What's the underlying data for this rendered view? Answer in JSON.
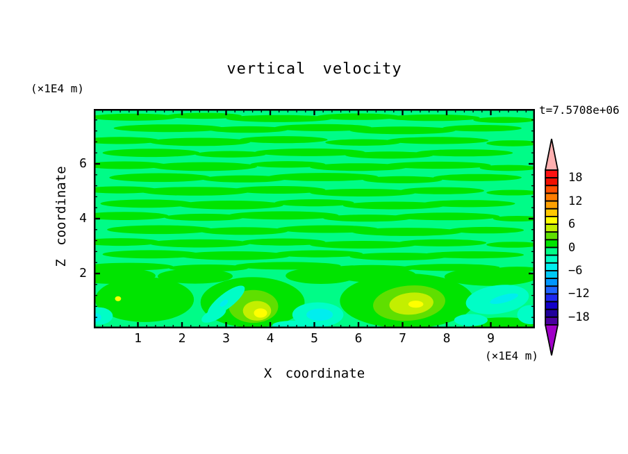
{
  "header": {
    "title": "vertical velocity",
    "time_label": "t=7.5708e+06"
  },
  "axes": {
    "x": {
      "label": "X coordinate",
      "unit": "(×1E4 m)",
      "range": [
        0,
        10
      ],
      "major_ticks": [
        1,
        2,
        3,
        4,
        5,
        6,
        7,
        8,
        9
      ],
      "minor_step": 0.2
    },
    "z": {
      "label": "Z coordinate",
      "unit": "(×1E4 m)",
      "range": [
        0,
        8
      ],
      "major_ticks": [
        2,
        4,
        6
      ],
      "minor_step": 0.4
    }
  },
  "colorbar": {
    "min": -20,
    "max": 20,
    "cell_step": 2,
    "labels": [
      18,
      12,
      6,
      0,
      -6,
      -12,
      -18
    ],
    "cells_top_to_bottom": [
      "l18",
      "l16",
      "l14",
      "l12",
      "l10",
      "l8",
      "l6",
      "l4",
      "l2",
      "l0",
      "m2",
      "m4",
      "m6",
      "m8",
      "m10",
      "m12",
      "m14",
      "m16",
      "m18",
      "m20"
    ],
    "over_color_key": "over",
    "under_color_key": "under"
  },
  "chart_data": {
    "type": "filled_contour",
    "title": "vertical velocity",
    "xlabel": "X coordinate",
    "ylabel": "Z coordinate",
    "x_unit": "(×1E4 m)",
    "z_unit": "(×1E4 m)",
    "time_annotation": "t=7.5708e+06",
    "x_range": [
      0,
      10
    ],
    "z_range": [
      0,
      8
    ],
    "value_range": [
      -20,
      20
    ],
    "contour_interval": 2,
    "background_level": "-2..0",
    "palette": {
      "l18": "#ff1212",
      "l16": "#f00f00",
      "l14": "#ff5000",
      "l12": "#ff7d00",
      "l10": "#ffa000",
      "l8": "#ffc800",
      "l6": "#ffff00",
      "l4": "#c3ef00",
      "l2": "#5fdf00",
      "l0": "#00e400",
      "m2": "#00fc87",
      "m4": "#00fec6",
      "m6": "#00eeee",
      "m8": "#00c8f5",
      "m10": "#0096ff",
      "m12": "#1e64ff",
      "m14": "#1e28f0",
      "m16": "#1400c8",
      "m18": "#20009b",
      "m20": "#4b00a0",
      "over": "#ffb0b0",
      "under": "#a000c8"
    },
    "streaks_level": "l0",
    "streaks": [
      [
        0.9,
        7.7,
        1.0,
        0.13
      ],
      [
        2.5,
        7.75,
        0.85,
        0.11
      ],
      [
        4.2,
        7.65,
        1.2,
        0.13
      ],
      [
        6.0,
        7.72,
        0.95,
        0.12
      ],
      [
        7.7,
        7.68,
        1.05,
        0.12
      ],
      [
        9.3,
        7.6,
        0.7,
        0.11
      ],
      [
        1.7,
        7.3,
        1.25,
        0.14
      ],
      [
        3.5,
        7.25,
        0.9,
        0.12
      ],
      [
        5.2,
        7.32,
        1.1,
        0.13
      ],
      [
        7.0,
        7.22,
        1.2,
        0.14
      ],
      [
        8.8,
        7.3,
        0.9,
        0.12
      ],
      [
        0.6,
        6.85,
        0.9,
        0.13
      ],
      [
        2.4,
        6.8,
        1.15,
        0.15
      ],
      [
        4.3,
        6.88,
        1.0,
        0.13
      ],
      [
        6.1,
        6.78,
        0.85,
        0.12
      ],
      [
        7.8,
        6.85,
        1.15,
        0.13
      ],
      [
        9.5,
        6.75,
        0.6,
        0.11
      ],
      [
        1.3,
        6.4,
        1.1,
        0.15
      ],
      [
        3.1,
        6.35,
        0.8,
        0.12
      ],
      [
        4.9,
        6.42,
        1.25,
        0.14
      ],
      [
        6.7,
        6.32,
        1.0,
        0.13
      ],
      [
        8.4,
        6.4,
        1.1,
        0.13
      ],
      [
        0.7,
        5.95,
        0.95,
        0.14
      ],
      [
        2.5,
        5.9,
        1.2,
        0.16
      ],
      [
        4.4,
        5.98,
        0.85,
        0.12
      ],
      [
        6.0,
        5.88,
        1.1,
        0.14
      ],
      [
        7.8,
        5.95,
        1.2,
        0.13
      ],
      [
        9.4,
        5.85,
        0.65,
        0.11
      ],
      [
        1.5,
        5.5,
        1.15,
        0.16
      ],
      [
        3.4,
        5.45,
        0.95,
        0.13
      ],
      [
        5.2,
        5.52,
        1.25,
        0.15
      ],
      [
        7.0,
        5.42,
        0.9,
        0.13
      ],
      [
        8.7,
        5.5,
        1.0,
        0.13
      ],
      [
        0.6,
        5.05,
        0.85,
        0.13
      ],
      [
        2.3,
        5.0,
        1.25,
        0.16
      ],
      [
        4.2,
        5.05,
        1.05,
        0.14
      ],
      [
        6.1,
        4.95,
        1.2,
        0.14
      ],
      [
        7.9,
        5.02,
        0.95,
        0.13
      ],
      [
        9.5,
        4.95,
        0.6,
        0.1
      ],
      [
        1.2,
        4.55,
        1.05,
        0.15
      ],
      [
        3.1,
        4.5,
        1.2,
        0.16
      ],
      [
        5.0,
        4.58,
        0.9,
        0.13
      ],
      [
        6.8,
        4.48,
        1.15,
        0.14
      ],
      [
        8.5,
        4.55,
        1.05,
        0.13
      ],
      [
        0.7,
        4.1,
        1.0,
        0.15
      ],
      [
        2.5,
        4.05,
        0.9,
        0.13
      ],
      [
        4.3,
        4.12,
        1.25,
        0.15
      ],
      [
        6.2,
        4.02,
        1.0,
        0.13
      ],
      [
        8.0,
        4.08,
        1.2,
        0.14
      ],
      [
        9.6,
        4.0,
        0.55,
        0.1
      ],
      [
        1.5,
        3.6,
        1.2,
        0.16
      ],
      [
        3.4,
        3.55,
        1.0,
        0.14
      ],
      [
        5.3,
        3.62,
        1.15,
        0.14
      ],
      [
        7.1,
        3.52,
        1.25,
        0.15
      ],
      [
        8.9,
        3.58,
        0.85,
        0.12
      ],
      [
        0.6,
        3.15,
        0.9,
        0.14
      ],
      [
        2.4,
        3.1,
        1.15,
        0.15
      ],
      [
        4.3,
        3.15,
        0.95,
        0.13
      ],
      [
        6.1,
        3.05,
        1.2,
        0.14
      ],
      [
        7.9,
        3.12,
        1.0,
        0.13
      ],
      [
        9.5,
        3.05,
        0.6,
        0.11
      ],
      [
        1.3,
        2.7,
        1.1,
        0.15
      ],
      [
        3.2,
        2.65,
        1.25,
        0.16
      ],
      [
        5.1,
        2.72,
        1.0,
        0.13
      ],
      [
        6.9,
        2.62,
        1.1,
        0.14
      ],
      [
        8.6,
        2.68,
        1.15,
        0.13
      ],
      [
        0.8,
        2.25,
        1.0,
        0.14
      ],
      [
        2.6,
        2.2,
        0.9,
        0.13
      ],
      [
        4.4,
        2.28,
        1.2,
        0.14
      ],
      [
        6.3,
        2.18,
        0.95,
        0.13
      ],
      [
        8.1,
        2.22,
        1.1,
        0.13
      ],
      [
        9.6,
        2.15,
        0.5,
        0.1
      ]
    ],
    "features": [
      [
        1.15,
        1.05,
        1.12,
        0.82,
        0,
        "l0"
      ],
      [
        3.6,
        0.95,
        1.18,
        0.92,
        0,
        "l0"
      ],
      [
        7.1,
        1.0,
        1.52,
        1.0,
        0,
        "l0"
      ],
      [
        5.15,
        1.92,
        0.8,
        0.3,
        0,
        "l0"
      ],
      [
        9.0,
        1.88,
        1.05,
        0.33,
        0,
        "l0"
      ],
      [
        0.45,
        1.92,
        0.95,
        0.3,
        0,
        "l0"
      ],
      [
        2.3,
        1.9,
        0.85,
        0.27,
        0,
        "l0"
      ],
      [
        6.4,
        1.95,
        0.9,
        0.28,
        0,
        "l0"
      ],
      [
        9.3,
        0.15,
        0.8,
        0.25,
        0,
        "l0"
      ],
      [
        3.62,
        0.8,
        0.56,
        0.6,
        0,
        "l2"
      ],
      [
        7.15,
        0.92,
        0.82,
        0.64,
        -5,
        "l2"
      ],
      [
        3.7,
        0.64,
        0.32,
        0.36,
        0,
        "l4"
      ],
      [
        7.2,
        0.9,
        0.5,
        0.4,
        -5,
        "l4"
      ],
      [
        3.78,
        0.56,
        0.15,
        0.17,
        0,
        "l6"
      ],
      [
        0.55,
        1.08,
        0.07,
        0.09,
        0,
        "l6"
      ],
      [
        7.3,
        0.88,
        0.17,
        0.13,
        0,
        "l6"
      ],
      [
        3.0,
        1.0,
        0.52,
        0.27,
        -38,
        "m4"
      ],
      [
        2.72,
        0.48,
        0.3,
        0.2,
        -25,
        "m4"
      ],
      [
        5.08,
        0.5,
        0.58,
        0.45,
        0,
        "m4"
      ],
      [
        9.15,
        1.05,
        0.72,
        0.52,
        -8,
        "m4"
      ],
      [
        0.1,
        0.45,
        0.33,
        0.32,
        0,
        "m4"
      ],
      [
        4.5,
        0.12,
        0.45,
        0.16,
        0,
        "m4"
      ],
      [
        8.55,
        0.3,
        0.38,
        0.22,
        0,
        "m4"
      ],
      [
        9.9,
        0.5,
        0.3,
        0.35,
        0,
        "m4"
      ],
      [
        5.12,
        0.5,
        0.3,
        0.22,
        0,
        "m6"
      ],
      [
        9.3,
        1.08,
        0.33,
        0.14,
        -15,
        "m6"
      ],
      [
        2.95,
        0.92,
        0.11,
        0.09,
        -38,
        "m6"
      ],
      [
        0.05,
        0.4,
        0.12,
        0.15,
        0,
        "m6"
      ]
    ]
  }
}
